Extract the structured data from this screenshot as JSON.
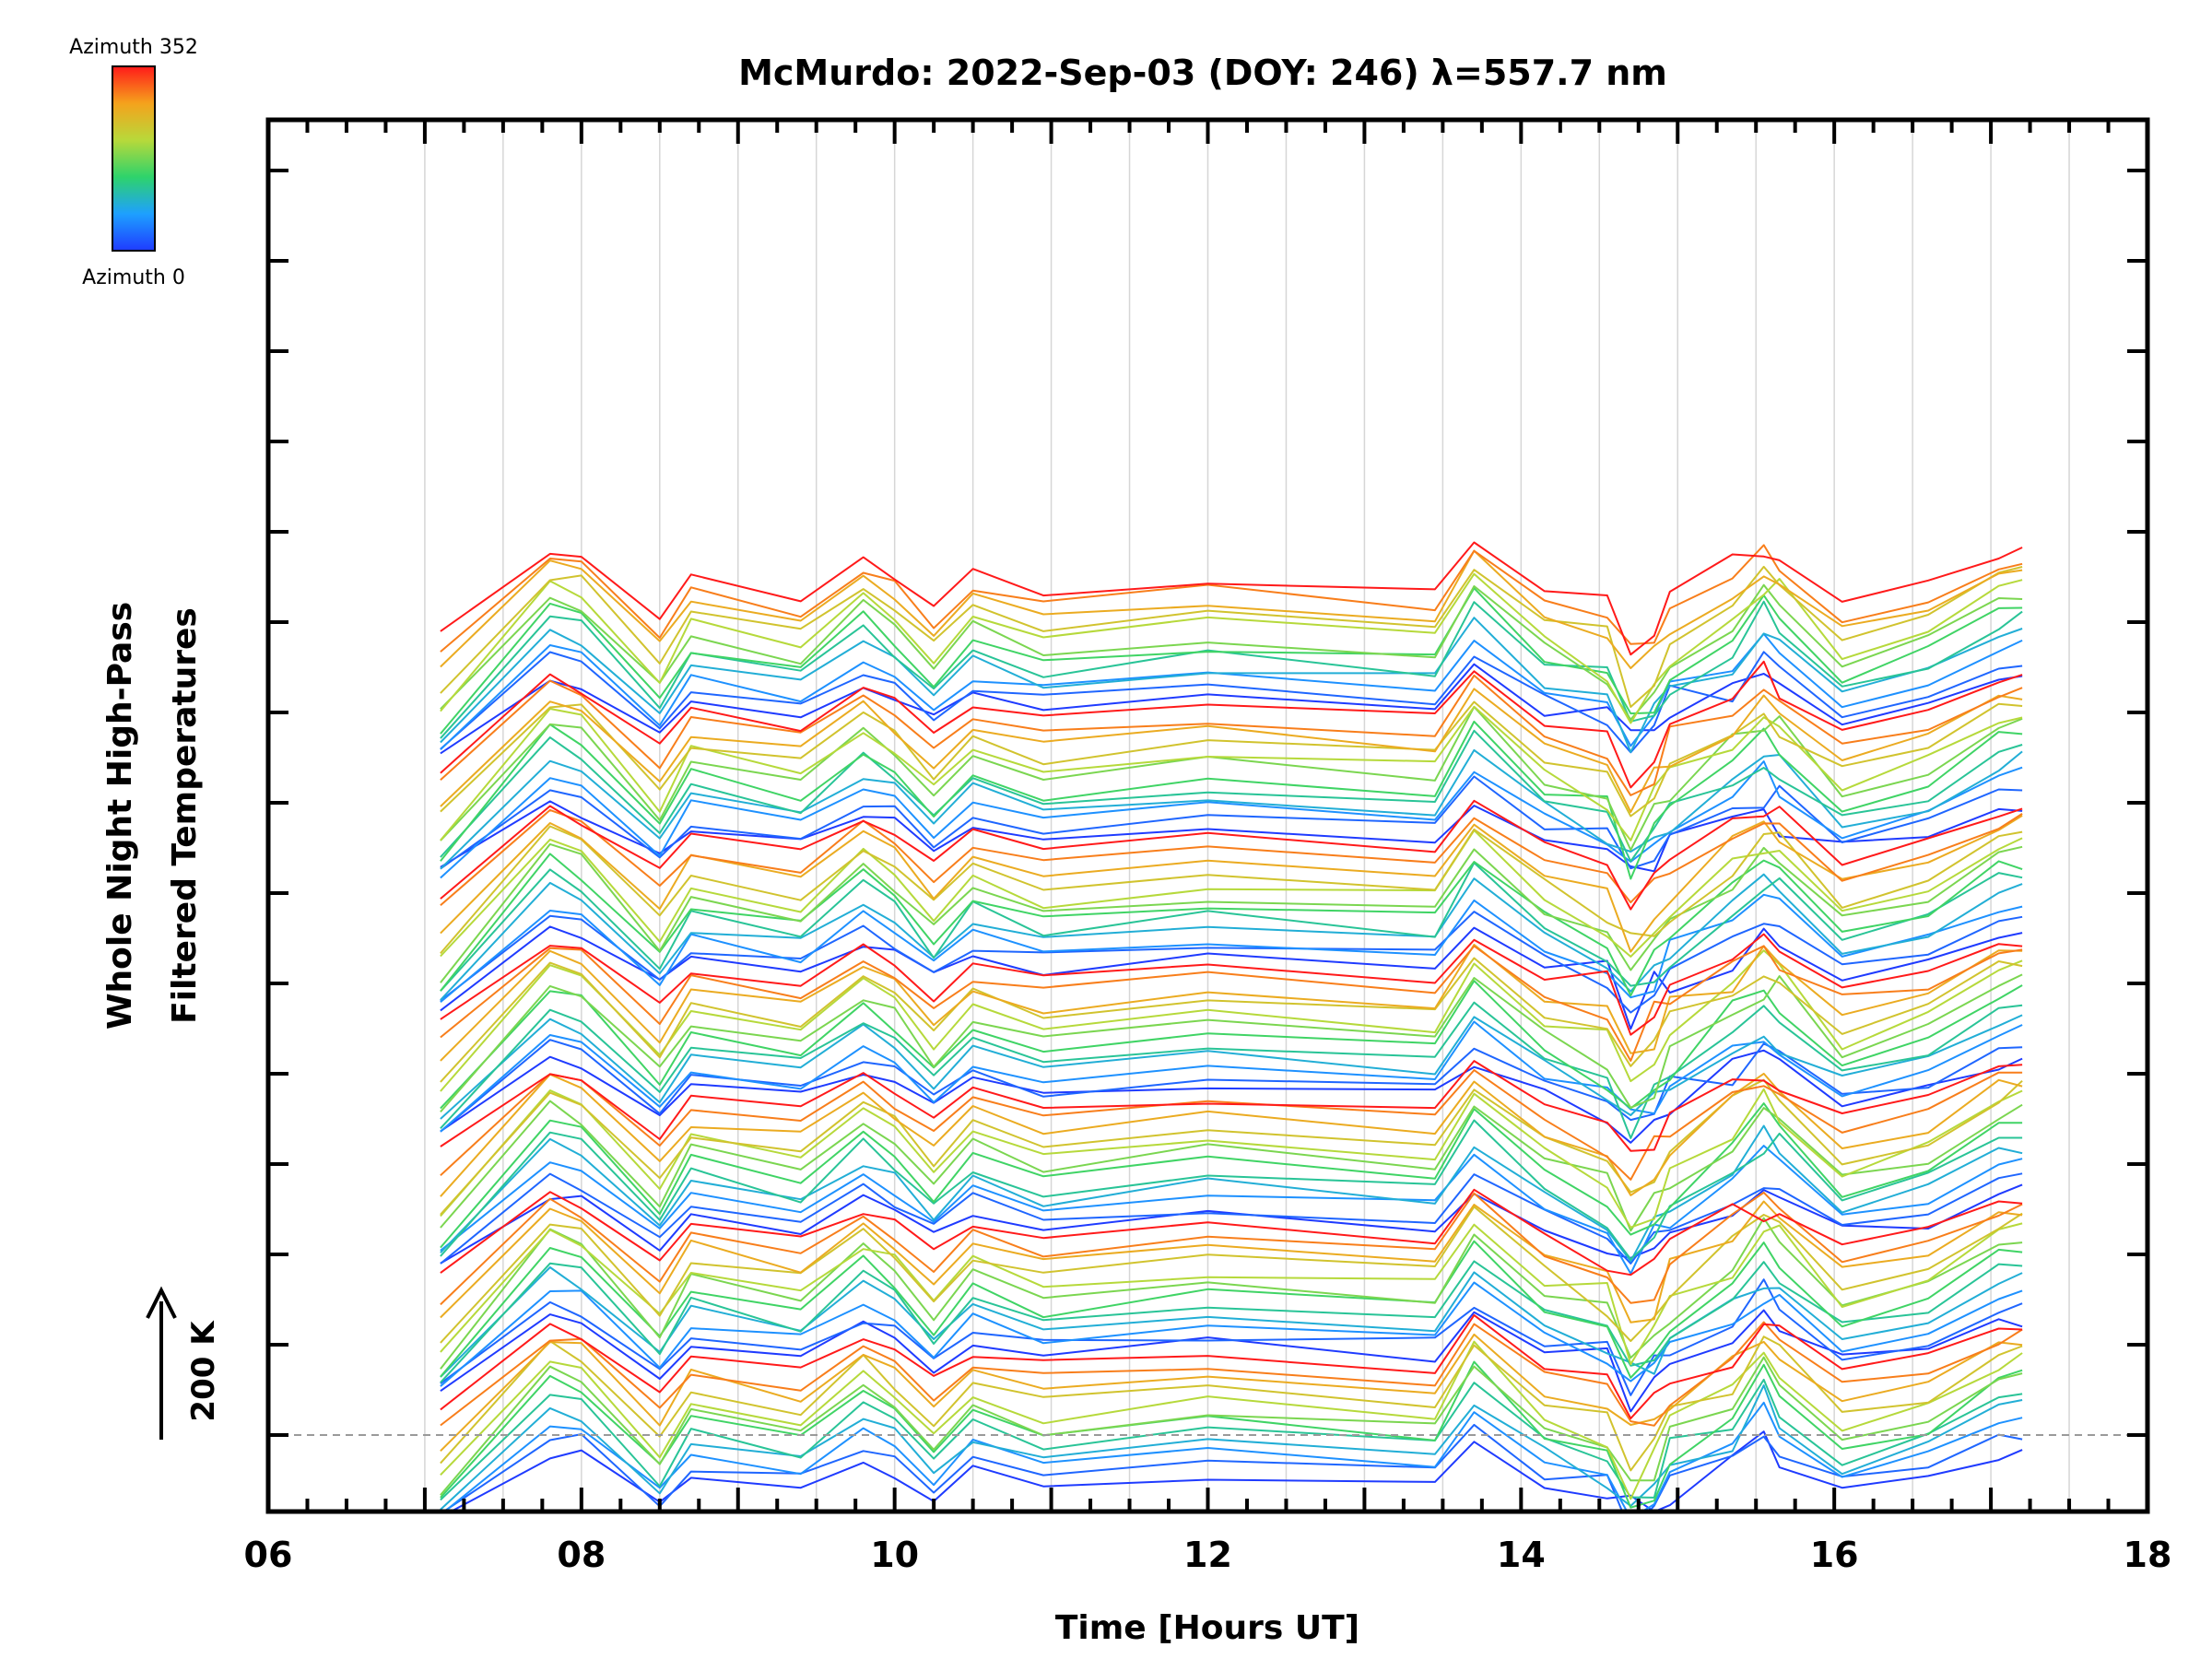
{
  "chart_data": {
    "type": "line",
    "title": "McMurdo: 2022-Sep-03 (DOY: 246) λ=557.7 nm",
    "xlabel": "Time [Hours UT]",
    "ylabel_line1": "Whole Night High-Pass",
    "ylabel_line2": "Filtered Temperatures",
    "scale_label": "200 K",
    "xlim": [
      6,
      18
    ],
    "x_ticks": [
      6,
      8,
      10,
      12,
      14,
      16,
      18
    ],
    "x_tick_labels": [
      "06",
      "08",
      "10",
      "12",
      "14",
      "16",
      "18"
    ],
    "colorbar": {
      "top_label": "Azimuth  352",
      "bottom_label": "Azimuth  0",
      "min": 0,
      "max": 352
    },
    "stack_groups": 7,
    "azimuths_per_group": 12,
    "times": [
      7.1,
      7.8,
      8.0,
      8.5,
      8.7,
      9.4,
      9.8,
      10.0,
      10.25,
      10.5,
      10.95,
      12.0,
      13.45,
      13.7,
      14.15,
      14.55,
      14.7,
      14.85,
      14.95,
      15.35,
      15.55,
      15.65,
      16.05,
      16.6,
      17.05,
      17.2
    ],
    "group_offsets": [
      880,
      740,
      600,
      460,
      320,
      180,
      40
    ],
    "template_profile": [
      -55,
      30,
      22,
      -35,
      0,
      -15,
      20,
      5,
      -25,
      5,
      -12,
      0,
      -10,
      35,
      -10,
      -25,
      -55,
      -40,
      -20,
      10,
      30,
      20,
      -20,
      -5,
      25,
      30
    ],
    "series": [
      {
        "name": "Azimuth 0",
        "azimuth": 0,
        "stack_offset": 0
      },
      {
        "name": "Azimuth 30",
        "azimuth": 30,
        "stack_offset": 9
      },
      {
        "name": "Azimuth 60",
        "azimuth": 60,
        "stack_offset": 18
      },
      {
        "name": "Azimuth 90",
        "azimuth": 90,
        "stack_offset": 27
      },
      {
        "name": "Azimuth 120",
        "azimuth": 120,
        "stack_offset": 36
      },
      {
        "name": "Azimuth 150",
        "azimuth": 150,
        "stack_offset": 45
      },
      {
        "name": "Azimuth 180",
        "azimuth": 180,
        "stack_offset": 54
      },
      {
        "name": "Azimuth 210",
        "azimuth": 210,
        "stack_offset": 63
      },
      {
        "name": "Azimuth 240",
        "azimuth": 240,
        "stack_offset": 72
      },
      {
        "name": "Azimuth 270",
        "azimuth": 270,
        "stack_offset": 81
      },
      {
        "name": "Azimuth 300",
        "azimuth": 300,
        "stack_offset": 90
      },
      {
        "name": "Azimuth 352",
        "azimuth": 352,
        "stack_offset": 99
      }
    ],
    "grid": true
  }
}
